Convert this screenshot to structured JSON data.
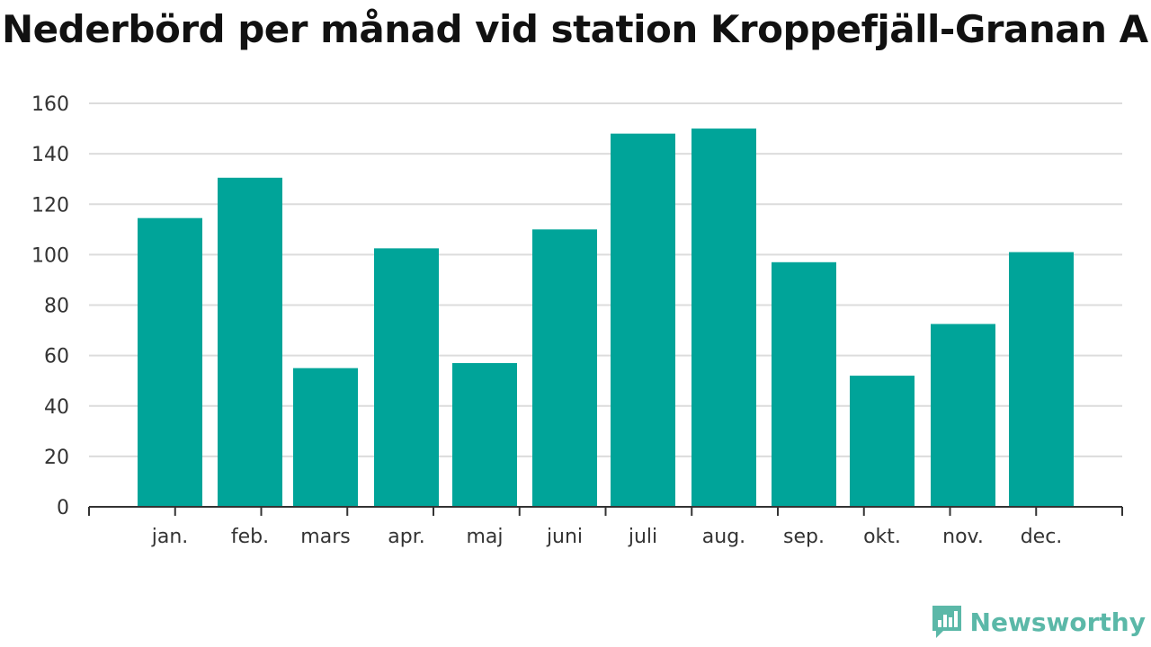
{
  "title": "Nederbörd per månad vid station Kroppefjäll-Granan A",
  "brand": {
    "name": "Newsworthy",
    "icon": "newsworthy-logo-icon",
    "color": "#5bb8a8"
  },
  "chart_data": {
    "type": "bar",
    "title": "Nederbörd per månad vid station Kroppefjäll-Granan A",
    "categories": [
      "jan.",
      "feb.",
      "mars",
      "apr.",
      "maj",
      "juni",
      "juli",
      "aug.",
      "sep.",
      "okt.",
      "nov.",
      "dec."
    ],
    "series": [
      {
        "values": [
          114.5,
          130.5,
          55,
          102.5,
          57,
          110,
          148,
          150,
          97,
          52,
          72.5,
          101
        ]
      }
    ],
    "ylim": [
      0,
      160
    ],
    "yticks": [
      "0",
      "20",
      "40",
      "60",
      "80",
      "100",
      "120",
      "140",
      "160"
    ],
    "grid": true,
    "bar_color": "#00a499",
    "xlabel": "",
    "ylabel": ""
  }
}
